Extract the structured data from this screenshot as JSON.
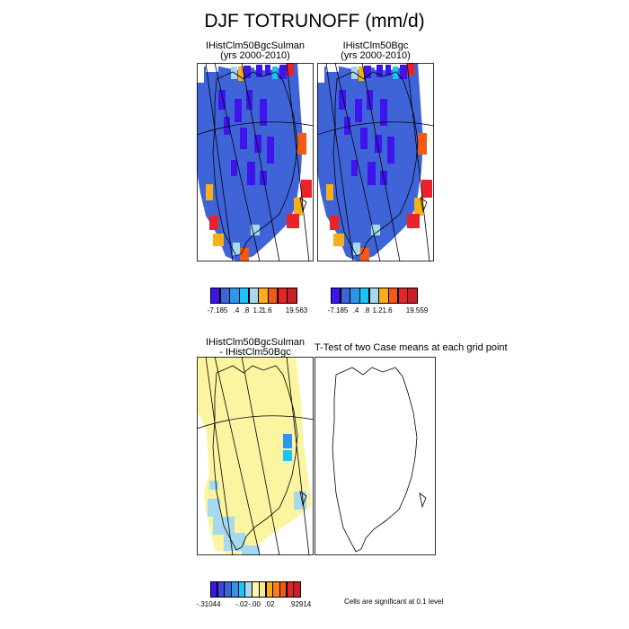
{
  "figure": {
    "title": "DJF TOTRUNOFF (mm/d)"
  },
  "panels": [
    {
      "title_line1": "IHistClm50BgcSulman",
      "title_line2": "(yrs 2000-2010)"
    },
    {
      "title_line1": "IHistClm50Bgc",
      "title_line2": "(yrs 2000-2010)"
    }
  ],
  "difference": {
    "title_line1": "IHistClm50BgcSulman",
    "title_line2": "- IHistClm50Bgc",
    "ttest_title": "T-Test of two Case means at each grid point",
    "significance_note": "Cells are significant at 0.1 level"
  },
  "colorbars": {
    "case1": {
      "colors": [
        "#3d14ee",
        "#3f64d8",
        "#2b95f0",
        "#1bc4f4",
        "#a6d8f0",
        "#f7af18",
        "#f55a14",
        "#e8242a",
        "#c81e27"
      ],
      "labels": [
        "-7.185",
        ".4",
        ".8",
        "1.2",
        "1.6",
        "19.563"
      ]
    },
    "case2": {
      "colors": [
        "#3d14ee",
        "#3f64d8",
        "#2b95f0",
        "#1bc4f4",
        "#a6d8f0",
        "#f7af18",
        "#f55a14",
        "#e8242a",
        "#c81e27"
      ],
      "labels": [
        "-7.185",
        ".4",
        ".8",
        "1.2",
        "1.6",
        "19.559"
      ]
    },
    "diff": {
      "colors": [
        "#3d14ee",
        "#3c45e0",
        "#3f64d8",
        "#2b95f0",
        "#1bc4f4",
        "#a6d8f0",
        "#fff6a6",
        "#fbe98a",
        "#f7af18",
        "#f58214",
        "#f55a14",
        "#e8242a",
        "#c81e27"
      ],
      "labels": [
        "-.31044",
        "-.02",
        "-.00",
        ".02",
        ".92914"
      ]
    }
  },
  "map_colors": {
    "dominant_runoff": "#3f64d8",
    "min_runoff": "#3d14ee",
    "diff_positive_small": "#fbf4a0",
    "diff_negative_small": "#a6d8f0",
    "diff_negative": "#2b95f0"
  }
}
